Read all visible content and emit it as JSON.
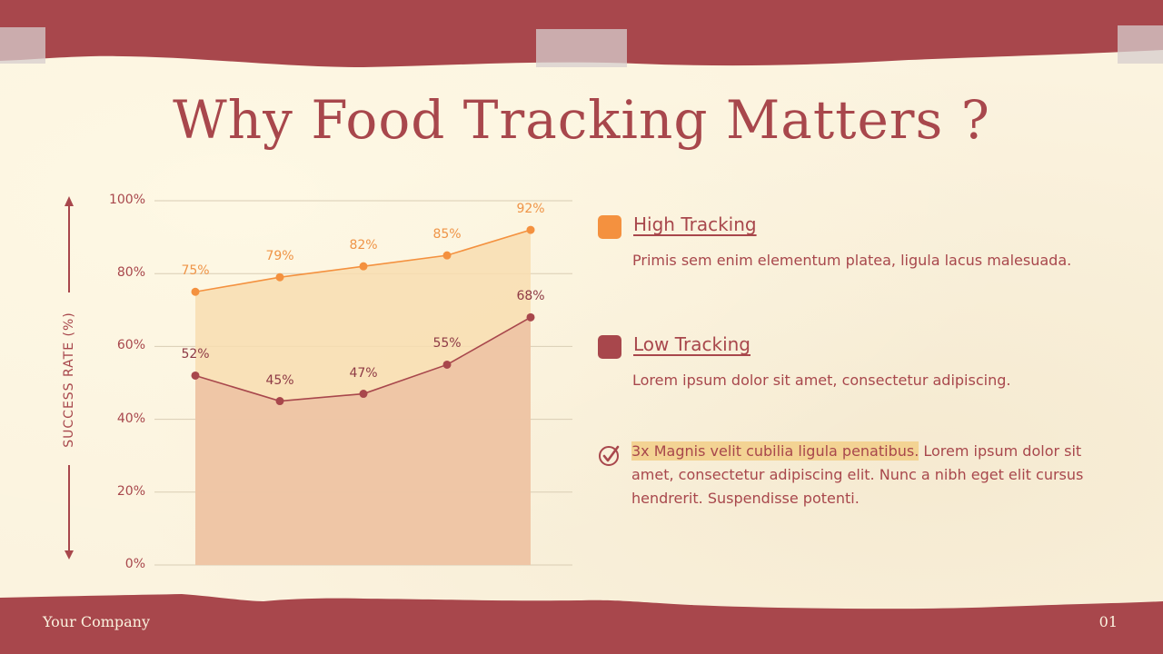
{
  "slide": {
    "title": "Why Food Tracking Matters ?",
    "footer": {
      "company": "Your Company",
      "page_number": "01"
    },
    "colors": {
      "background": "#fbf3df",
      "band": "#a8474c",
      "accent_text": "#a8474c",
      "high_tracking": "#f4913f",
      "low_tracking": "#a8474c",
      "highlight": "#f3d393",
      "high_fill": "#f8ddb0",
      "low_fill": "#edc3a4"
    }
  },
  "legend": {
    "high": {
      "title": "High Tracking",
      "description": "Primis sem enim elementum platea, ligula lacus malesuada."
    },
    "low": {
      "title": "Low Tracking",
      "description": "Lorem ipsum dolor sit amet, consectetur adipiscing."
    }
  },
  "note": {
    "icon": "check-circle-icon",
    "highlight": "3x Magnis velit cubilia ligula penatibus.",
    "text": " Lorem ipsum dolor sit amet, consectetur adipiscing elit. Nunc a nibh eget elit cursus hendrerit. Suspendisse potenti."
  },
  "chart_data": {
    "type": "area",
    "title": "",
    "xlabel": "",
    "ylabel": "SUCCESS RATE (%)",
    "categories": [
      "1",
      "2",
      "3",
      "4",
      "5"
    ],
    "x_tick_labels_visible": false,
    "ylim": [
      0,
      100
    ],
    "yticks": [
      "0%",
      "20%",
      "40%",
      "60%",
      "80%",
      "100%"
    ],
    "grid": true,
    "legend_position": "right",
    "series": [
      {
        "name": "High Tracking",
        "values": [
          75,
          79,
          82,
          85,
          92
        ],
        "labels": [
          "75%",
          "79%",
          "82%",
          "85%",
          "92%"
        ],
        "color": "#f4913f"
      },
      {
        "name": "Low Tracking",
        "values": [
          52,
          45,
          47,
          55,
          68
        ],
        "labels": [
          "52%",
          "45%",
          "47%",
          "55%",
          "68%"
        ],
        "color": "#a8474c"
      }
    ]
  }
}
